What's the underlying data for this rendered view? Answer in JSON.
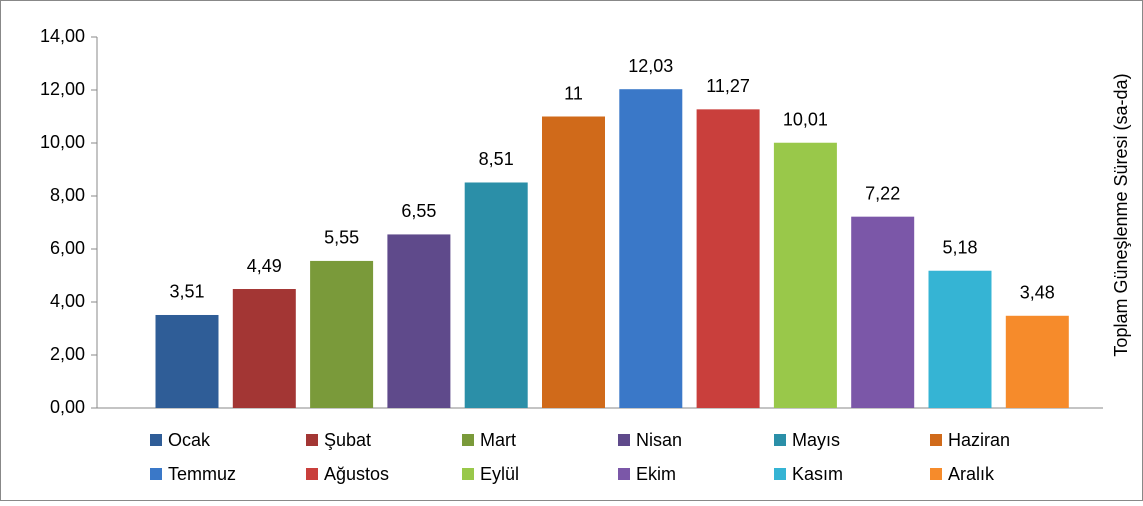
{
  "chart_data": {
    "type": "bar",
    "categories": [
      null
    ],
    "series": [
      {
        "name": "Ocak",
        "color": "#2f5d97",
        "values": [
          3.51
        ],
        "value_labels": [
          "3,51"
        ]
      },
      {
        "name": "Şubat",
        "color": "#a33634",
        "values": [
          4.49
        ],
        "value_labels": [
          "4,49"
        ]
      },
      {
        "name": "Mart",
        "color": "#7a9a3a",
        "values": [
          5.55
        ],
        "value_labels": [
          "5,55"
        ]
      },
      {
        "name": "Nisan",
        "color": "#5f4a8b",
        "values": [
          6.55
        ],
        "value_labels": [
          "6,55"
        ]
      },
      {
        "name": "Mayıs",
        "color": "#2b8fa8",
        "values": [
          8.51
        ],
        "value_labels": [
          "8,51"
        ]
      },
      {
        "name": "Haziran",
        "color": "#d06a1a",
        "values": [
          11
        ],
        "value_labels": [
          "11"
        ]
      },
      {
        "name": "Temmuz",
        "color": "#3a78c8",
        "values": [
          12.03
        ],
        "value_labels": [
          "12,03"
        ]
      },
      {
        "name": "Ağustos",
        "color": "#c93f3c",
        "values": [
          11.27
        ],
        "value_labels": [
          "11,27"
        ]
      },
      {
        "name": "Eylül",
        "color": "#99c84a",
        "values": [
          10.01
        ],
        "value_labels": [
          "10,01"
        ]
      },
      {
        "name": "Ekim",
        "color": "#7b57a8",
        "values": [
          7.22
        ],
        "value_labels": [
          "7,22"
        ]
      },
      {
        "name": "Kasım",
        "color": "#35b4d4",
        "values": [
          5.18
        ],
        "value_labels": [
          "5,18"
        ]
      },
      {
        "name": "Aralık",
        "color": "#f68b2b",
        "values": [
          3.48
        ],
        "value_labels": [
          "3,48"
        ]
      }
    ],
    "y_axis_label": "Toplam Güneşlenme Süresi (sa-da)",
    "ylim": [
      0,
      14
    ],
    "yticks": [
      {
        "value": 0,
        "label": "0,00"
      },
      {
        "value": 2,
        "label": "2,00"
      },
      {
        "value": 4,
        "label": "4,00"
      },
      {
        "value": 6,
        "label": "6,00"
      },
      {
        "value": 8,
        "label": "8,00"
      },
      {
        "value": 10,
        "label": "10,00"
      },
      {
        "value": 12,
        "label": "12,00"
      },
      {
        "value": 14,
        "label": "14,00"
      }
    ],
    "grid": false,
    "legend": "bottom"
  }
}
